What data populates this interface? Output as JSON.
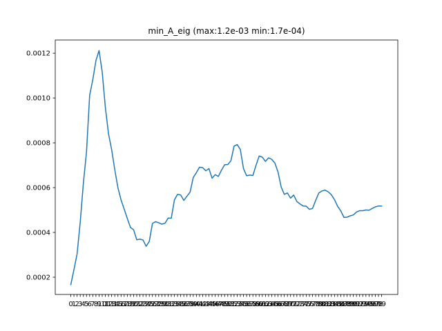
{
  "chart_data": {
    "type": "line",
    "title": "min_A_eig (max:1.2e-03 min:1.7e-04)",
    "xlabel": "",
    "ylabel": "",
    "color": "#1f77b4",
    "grid": false,
    "legend": "none",
    "ylim": [
      0.000123,
      0.001259
    ],
    "xlim": [
      -4.96,
      104.16
    ],
    "x": [
      0,
      1,
      2,
      3,
      4,
      5,
      6,
      7,
      8,
      9,
      10,
      11,
      12,
      13,
      14,
      15,
      16,
      17,
      18,
      19,
      20,
      21,
      22,
      23,
      24,
      25,
      26,
      27,
      28,
      29,
      30,
      31,
      32,
      33,
      34,
      35,
      36,
      37,
      38,
      39,
      40,
      41,
      42,
      43,
      44,
      45,
      46,
      47,
      48,
      49,
      50,
      51,
      52,
      53,
      54,
      55,
      56,
      57,
      58,
      59,
      60,
      61,
      62,
      63,
      64,
      65,
      66,
      67,
      68,
      69,
      70,
      71,
      72,
      73,
      74,
      75,
      76,
      77,
      78,
      79,
      80,
      81,
      82,
      83,
      84,
      85,
      86,
      87,
      88,
      89,
      90,
      91,
      92,
      93,
      94,
      95,
      96,
      97,
      98,
      99
    ],
    "x_tick_labels": [
      "0",
      "1",
      "2",
      "3",
      "4",
      "5",
      "6",
      "7",
      "8",
      "9",
      "10",
      "11",
      "12",
      "13",
      "14",
      "15",
      "16",
      "17",
      "18",
      "19",
      "20",
      "21",
      "22",
      "23",
      "24",
      "25",
      "26",
      "27",
      "28",
      "29",
      "30",
      "31",
      "32",
      "33",
      "34",
      "35",
      "36",
      "37",
      "38",
      "39",
      "40",
      "41",
      "42",
      "43",
      "44",
      "45",
      "46",
      "47",
      "48",
      "49",
      "50",
      "51",
      "52",
      "53",
      "54",
      "55",
      "56",
      "57",
      "58",
      "59",
      "60",
      "61",
      "62",
      "63",
      "64",
      "65",
      "66",
      "67",
      "68",
      "69",
      "70",
      "71",
      "72",
      "73",
      "74",
      "75",
      "76",
      "77",
      "78",
      "79",
      "80",
      "81",
      "82",
      "83",
      "84",
      "85",
      "86",
      "87",
      "88",
      "89",
      "90",
      "91",
      "92",
      "93",
      "94",
      "95",
      "96",
      "97",
      "98",
      "99"
    ],
    "y_ticks": [
      0.0002,
      0.0004,
      0.0006,
      0.0008,
      0.001,
      0.0012
    ],
    "y_tick_labels": [
      "0.0002",
      "0.0004",
      "0.0006",
      "0.0008",
      "0.0010",
      "0.0012"
    ],
    "y": [
      0.000167,
      0.000234,
      0.000304,
      0.000446,
      0.00062,
      0.00076,
      0.001012,
      0.001082,
      0.001167,
      0.001212,
      0.001116,
      0.000958,
      0.000841,
      0.00077,
      0.00068,
      0.0006,
      0.000545,
      0.000504,
      0.000462,
      0.000422,
      0.000412,
      0.000367,
      0.00037,
      0.000366,
      0.000338,
      0.00036,
      0.00044,
      0.000448,
      0.000443,
      0.000437,
      0.000441,
      0.000464,
      0.000463,
      0.000545,
      0.00057,
      0.000567,
      0.000543,
      0.000562,
      0.00058,
      0.000645,
      0.000667,
      0.000691,
      0.000689,
      0.000675,
      0.000685,
      0.000642,
      0.000658,
      0.00065,
      0.000678,
      0.000702,
      0.000703,
      0.00072,
      0.000785,
      0.000792,
      0.00077,
      0.000685,
      0.000653,
      0.000656,
      0.000654,
      0.0007,
      0.000741,
      0.000736,
      0.000717,
      0.000733,
      0.000726,
      0.00071,
      0.00067,
      0.000603,
      0.00057,
      0.000576,
      0.000553,
      0.000567,
      0.000538,
      0.000527,
      0.000518,
      0.000517,
      0.000503,
      0.000507,
      0.000543,
      0.000576,
      0.000585,
      0.000589,
      0.000581,
      0.000568,
      0.000546,
      0.000516,
      0.000496,
      0.000467,
      0.000468,
      0.000474,
      0.000478,
      0.000491,
      0.000497,
      0.000497,
      0.0005,
      0.000499,
      0.000507,
      0.000514,
      0.000518,
      0.000518
    ]
  }
}
